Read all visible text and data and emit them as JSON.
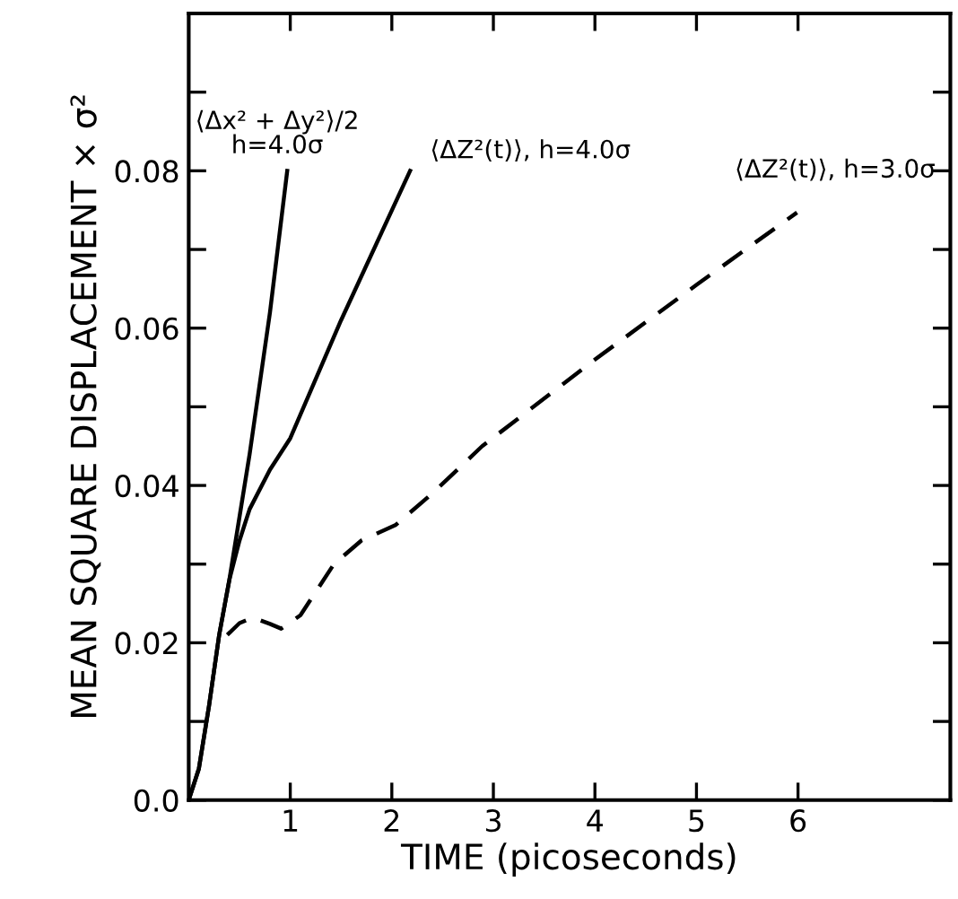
{
  "chart_data": {
    "type": "line",
    "xlabel": "TIME (picoseconds)",
    "ylabel": "MEAN SQUARE DISPLACEMENT × σ²",
    "xlim": [
      0,
      7.5
    ],
    "xticks": [
      1,
      2,
      3,
      4,
      5,
      6
    ],
    "ylim": [
      0,
      0.1
    ],
    "yticks": [
      {
        "value": 0,
        "label": "0.0"
      },
      {
        "value": 0.01,
        "label": null
      },
      0.02,
      {
        "value": 0.03,
        "label": null
      },
      0.04,
      {
        "value": 0.05,
        "label": null
      },
      0.06,
      {
        "value": 0.07,
        "label": null
      },
      0.08,
      {
        "value": 0.09,
        "label": null
      }
    ],
    "grid": false,
    "marker": "none",
    "annotations": [
      {
        "text": "⟨Δx² + Δy²⟩/2\nh=4.0σ",
        "x": 0.97,
        "y": 0.08
      },
      {
        "text": "⟨ΔZ²(t)⟩, h=4.0σ",
        "x": 2.18,
        "y": 0.08
      },
      {
        "text": "⟨ΔZ²(t)⟩, h=3.0σ",
        "x": 5.99,
        "y": 0.0747
      }
    ],
    "series": [
      {
        "color": "#000000",
        "line_style": "solid",
        "x": [
          0,
          0.1,
          0.2,
          0.3,
          0.4,
          0.5,
          0.6,
          0.8,
          0.97
        ],
        "values": [
          0,
          0.004,
          0.012,
          0.021,
          0.028,
          0.036,
          0.044,
          0.062,
          0.08
        ]
      },
      {
        "color": "#000000",
        "line_style": "solid",
        "x": [
          0,
          0.1,
          0.2,
          0.3,
          0.4,
          0.5,
          0.6,
          0.8,
          1.0,
          1.5,
          2.18
        ],
        "values": [
          0,
          0.004,
          0.012,
          0.021,
          0.028,
          0.033,
          0.037,
          0.042,
          0.046,
          0.061,
          0.08
        ]
      },
      {
        "color": "#000000",
        "line_style": "dashed",
        "x": [
          0.38,
          0.5,
          0.63,
          0.8,
          0.91,
          1.1,
          1.43,
          1.7,
          2.04,
          2.4,
          2.89,
          4.0,
          5.0,
          5.99
        ],
        "values": [
          0.021,
          0.0225,
          0.0232,
          0.0224,
          0.0218,
          0.0235,
          0.03,
          0.033,
          0.035,
          0.039,
          0.045,
          0.056,
          0.0655,
          0.0747
        ]
      }
    ]
  }
}
